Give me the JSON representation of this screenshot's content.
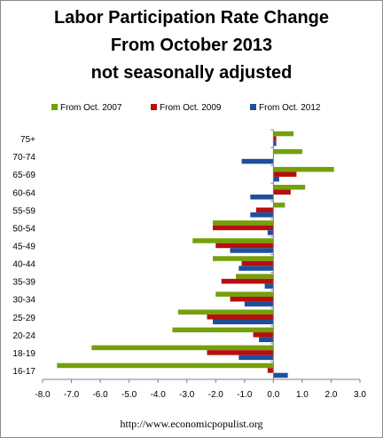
{
  "title_lines": [
    "Labor Participation Rate Change",
    "From October 2013",
    "not seasonally adjusted"
  ],
  "footer_url": "http://www.economicpopulist.org",
  "colors": {
    "From Oct. 2007": "#74a00a",
    "From Oct. 2009": "#b70f0f",
    "From Oct. 2012": "#1f4f9c"
  },
  "chart_data": {
    "type": "bar",
    "orientation": "horizontal",
    "title": "Labor Participation Rate Change From October 2013 not seasonally adjusted",
    "xlabel": "",
    "ylabel": "",
    "xlim": [
      -8.0,
      3.0
    ],
    "xticks": [
      "-8.0",
      "-7.0",
      "-6.0",
      "-5.0",
      "-4.0",
      "-3.0",
      "-2.0",
      "-1.0",
      "0.0",
      "1.0",
      "2.0",
      "3.0"
    ],
    "grid": false,
    "legend_position": "top",
    "categories": [
      "75+",
      "70-74",
      "65-69",
      "60-64",
      "55-59",
      "50-54",
      "45-49",
      "40-44",
      "35-39",
      "30-34",
      "25-29",
      "20-24",
      "18-19",
      "16-17"
    ],
    "series": [
      {
        "name": "From Oct. 2007",
        "values": [
          0.7,
          1.0,
          2.1,
          1.1,
          0.4,
          -2.1,
          -2.8,
          -2.1,
          -1.3,
          -2.0,
          -3.3,
          -3.5,
          -6.3,
          -7.5
        ]
      },
      {
        "name": "From Oct. 2009",
        "values": [
          0.1,
          0.0,
          0.8,
          0.6,
          -0.6,
          -2.1,
          -2.0,
          -1.1,
          -1.8,
          -1.5,
          -2.3,
          -0.7,
          -2.3,
          -0.2
        ]
      },
      {
        "name": "From Oct. 2012",
        "values": [
          0.1,
          -1.1,
          0.2,
          -0.8,
          -0.8,
          -0.2,
          -1.5,
          -1.2,
          -0.3,
          -1.0,
          -2.1,
          -0.5,
          -1.2,
          0.5
        ]
      }
    ]
  }
}
